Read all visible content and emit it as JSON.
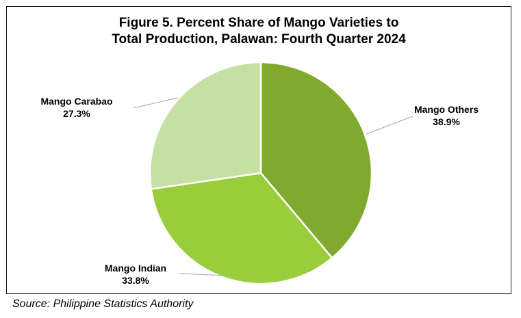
{
  "chart_data": {
    "type": "pie",
    "title_line1": "Figure 5. Percent Share of Mango Varieties to",
    "title_line2": "Total Production, Palawan: Fourth Quarter 2024",
    "slices": [
      {
        "label": "Mango Others",
        "value": 38.9,
        "value_label": "38.9%",
        "color": "#7faa2e"
      },
      {
        "label": "Mango Indian",
        "value": 33.8,
        "value_label": "33.8%",
        "color": "#9acd3c"
      },
      {
        "label": "Mango Carabao",
        "value": 27.3,
        "value_label": "27.3%",
        "color": "#c6e0a4"
      }
    ],
    "start_angle_deg": 0,
    "direction": "clockwise",
    "legend": "none",
    "data_labels": "outside with leader lines"
  },
  "source": "Source: Philippine Statistics Authority"
}
